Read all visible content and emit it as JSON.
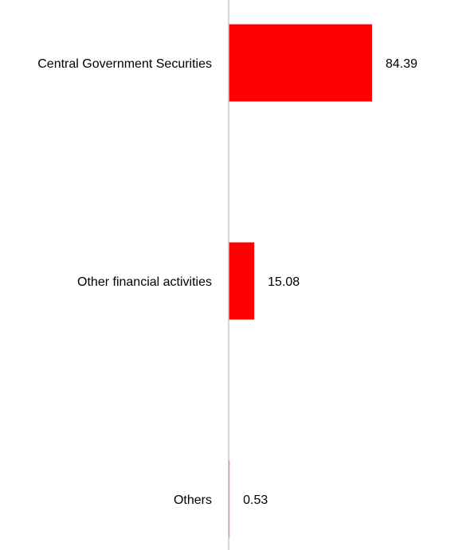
{
  "chart_data": {
    "type": "bar",
    "orientation": "horizontal",
    "categories": [
      "Central Government Securities",
      "Other financial activities",
      "Others"
    ],
    "values": [
      84.39,
      15.08,
      0.53
    ],
    "value_labels": [
      "84.39",
      "15.08",
      "0.53"
    ],
    "title": "",
    "xlabel": "",
    "ylabel": "",
    "xlim": [
      0,
      100
    ],
    "grid": false,
    "legend": "none",
    "bar_color": "#ff0000",
    "axis_color": "#c8c8c8"
  }
}
